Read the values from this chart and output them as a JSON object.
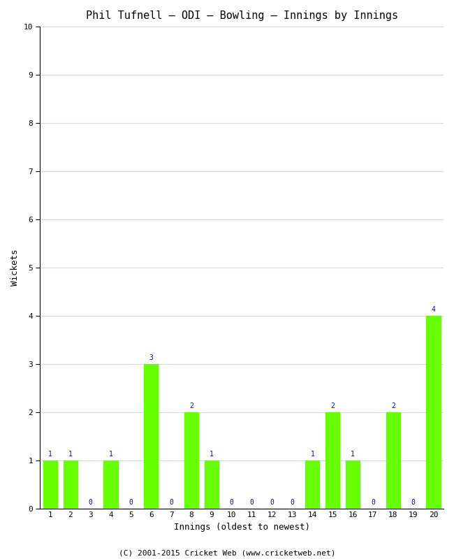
{
  "title": "Phil Tufnell – ODI – Bowling – Innings by Innings",
  "xlabel": "Innings (oldest to newest)",
  "ylabel": "Wickets",
  "xlim": [
    0.5,
    20.5
  ],
  "ylim": [
    0,
    10
  ],
  "yticks": [
    0,
    1,
    2,
    3,
    4,
    5,
    6,
    7,
    8,
    9,
    10
  ],
  "innings": [
    1,
    2,
    3,
    4,
    5,
    6,
    7,
    8,
    9,
    10,
    11,
    12,
    13,
    14,
    15,
    16,
    17,
    18,
    19,
    20
  ],
  "wickets": [
    1,
    1,
    0,
    1,
    0,
    3,
    0,
    2,
    1,
    0,
    0,
    0,
    0,
    1,
    2,
    1,
    0,
    2,
    0,
    4
  ],
  "bar_color": "#66ff00",
  "label_color": "#0000cc",
  "background_color": "#ffffff",
  "grid_color": "#d8d8d8",
  "spine_color": "#000000",
  "footer": "(C) 2001-2015 Cricket Web (www.cricketweb.net)",
  "title_fontsize": 11,
  "axis_label_fontsize": 9,
  "tick_label_fontsize": 8,
  "bar_label_fontsize": 7,
  "footer_fontsize": 8
}
